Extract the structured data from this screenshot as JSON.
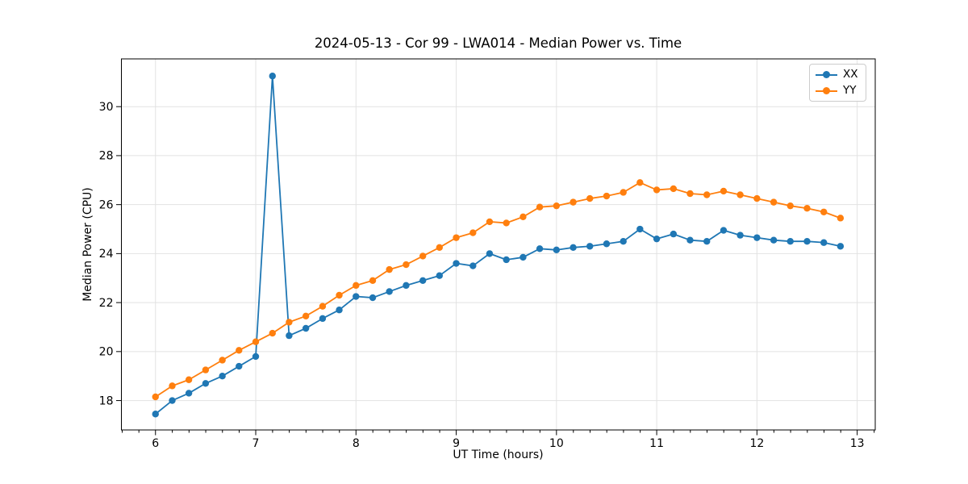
{
  "chart_data": {
    "type": "line",
    "title": "2024-05-13 - Cor 99 - LWA014 - Median Power vs. Time",
    "xlabel": "UT Time (hours)",
    "ylabel": "Median Power (CPU)",
    "xlim": [
      5.66,
      13.18
    ],
    "ylim": [
      16.8,
      31.95
    ],
    "x_ticks": [
      6,
      7,
      8,
      9,
      10,
      11,
      12,
      13
    ],
    "y_ticks": [
      18,
      20,
      22,
      24,
      26,
      28,
      30
    ],
    "x_minor_tick_step": 0.1667,
    "grid": true,
    "grid_color": "#e2e2e2",
    "axis_color": "#000000",
    "legend_position": "upper right",
    "marker": "circle",
    "x": [
      6,
      6.167,
      6.333,
      6.5,
      6.667,
      6.833,
      7,
      7.167,
      7.333,
      7.5,
      7.667,
      7.833,
      8,
      8.167,
      8.333,
      8.5,
      8.667,
      8.833,
      9,
      9.167,
      9.333,
      9.5,
      9.667,
      9.833,
      10,
      10.167,
      10.333,
      10.5,
      10.667,
      10.833,
      11,
      11.167,
      11.333,
      11.5,
      11.667,
      11.833,
      12,
      12.167,
      12.333,
      12.5,
      12.667,
      12.833
    ],
    "series": [
      {
        "name": "XX",
        "color": "#1f77b4",
        "values": [
          17.45,
          18.0,
          18.3,
          18.7,
          19.0,
          19.4,
          19.8,
          31.25,
          20.65,
          20.95,
          21.35,
          21.7,
          22.25,
          22.2,
          22.45,
          22.7,
          22.9,
          23.1,
          23.6,
          23.5,
          24.0,
          23.75,
          23.85,
          24.2,
          24.15,
          24.25,
          24.3,
          24.4,
          24.5,
          25.0,
          24.6,
          24.8,
          24.55,
          24.5,
          24.95,
          24.75,
          24.65,
          24.55,
          24.5,
          24.5,
          24.45,
          24.3
        ]
      },
      {
        "name": "YY",
        "color": "#ff7f0e",
        "values": [
          18.15,
          18.6,
          18.85,
          19.25,
          19.65,
          20.05,
          20.4,
          20.75,
          21.2,
          21.45,
          21.85,
          22.3,
          22.7,
          22.9,
          23.35,
          23.55,
          23.9,
          24.25,
          24.65,
          24.85,
          25.3,
          25.25,
          25.5,
          25.9,
          25.95,
          26.1,
          26.25,
          26.35,
          26.5,
          26.9,
          26.6,
          26.65,
          26.45,
          26.4,
          26.55,
          26.4,
          26.25,
          26.1,
          25.95,
          25.85,
          25.7,
          25.45
        ]
      }
    ]
  }
}
